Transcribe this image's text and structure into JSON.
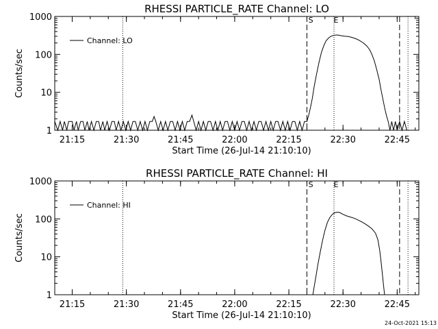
{
  "footer": {
    "timestamp": "24-Oct-2021 15:13"
  },
  "chart_data": [
    {
      "type": "line",
      "title": "RHESSI PARTICLE_RATE Channel: LO",
      "xlabel": "Start Time (26-Jul-14 21:10:10)",
      "ylabel": "Counts/sec",
      "yscale": "log",
      "xlim": [
        "21:10:10",
        "22:51:00"
      ],
      "ylim": [
        1,
        1000
      ],
      "x_ticks": [
        "21:15",
        "21:30",
        "21:45",
        "22:00",
        "22:15",
        "22:30",
        "22:45"
      ],
      "y_ticks": [
        "1",
        "10",
        "100",
        "1000"
      ],
      "legend": {
        "label": "Channel: LO",
        "position": "top-left"
      },
      "dotted_lines": [
        "21:29:00",
        "22:27:30",
        "22:48:00"
      ],
      "dashed_lines": [
        "22:20:00",
        "22:45:40"
      ],
      "markers": [
        {
          "label": "S",
          "x": "22:20:30"
        },
        {
          "label": "E",
          "x": "22:27:30"
        }
      ],
      "series": [
        {
          "name": "Channel: LO",
          "points": [
            [
              "21:10:10",
              1.7
            ],
            [
              "21:11:00",
              1.0
            ],
            [
              "21:11:40",
              1.7
            ],
            [
              "21:12:20",
              1.0
            ],
            [
              "21:12:50",
              1.7
            ],
            [
              "21:13:30",
              1.0
            ],
            [
              "21:14:00",
              1.7
            ],
            [
              "21:15:00",
              1.7
            ],
            [
              "21:15:30",
              1.0
            ],
            [
              "21:16:10",
              1.7
            ],
            [
              "21:16:40",
              1.0
            ],
            [
              "21:17:20",
              1.7
            ],
            [
              "21:18:00",
              1.7
            ],
            [
              "21:18:30",
              1.0
            ],
            [
              "21:19:10",
              1.7
            ],
            [
              "21:19:40",
              1.0
            ],
            [
              "21:20:20",
              1.7
            ],
            [
              "21:21:00",
              1.0
            ],
            [
              "21:21:40",
              1.7
            ],
            [
              "21:22:20",
              1.7
            ],
            [
              "21:22:50",
              1.0
            ],
            [
              "21:23:30",
              1.7
            ],
            [
              "21:24:00",
              1.0
            ],
            [
              "21:24:40",
              1.7
            ],
            [
              "21:25:20",
              1.0
            ],
            [
              "21:26:00",
              1.7
            ],
            [
              "21:26:40",
              1.7
            ],
            [
              "21:27:10",
              1.0
            ],
            [
              "21:27:50",
              1.7
            ],
            [
              "21:28:30",
              1.0
            ],
            [
              "21:29:10",
              1.7
            ],
            [
              "21:29:50",
              1.0
            ],
            [
              "21:30:30",
              1.7
            ],
            [
              "21:31:10",
              1.0
            ],
            [
              "21:31:50",
              1.7
            ],
            [
              "21:32:30",
              1.7
            ],
            [
              "21:33:10",
              1.0
            ],
            [
              "21:33:50",
              1.7
            ],
            [
              "21:34:30",
              1.0
            ],
            [
              "21:35:10",
              1.7
            ],
            [
              "21:35:50",
              1.0
            ],
            [
              "21:36:30",
              1.7
            ],
            [
              "21:37:10",
              1.7
            ],
            [
              "21:37:40",
              2.3
            ],
            [
              "21:38:10",
              1.7
            ],
            [
              "21:38:50",
              1.0
            ],
            [
              "21:39:30",
              1.7
            ],
            [
              "21:40:10",
              1.0
            ],
            [
              "21:40:50",
              1.7
            ],
            [
              "21:41:30",
              1.0
            ],
            [
              "21:42:10",
              1.7
            ],
            [
              "21:42:50",
              1.7
            ],
            [
              "21:43:30",
              1.0
            ],
            [
              "21:44:10",
              1.7
            ],
            [
              "21:44:50",
              1.0
            ],
            [
              "21:45:30",
              1.7
            ],
            [
              "21:46:10",
              1.0
            ],
            [
              "21:46:50",
              1.7
            ],
            [
              "21:47:30",
              1.7
            ],
            [
              "21:48:10",
              2.5
            ],
            [
              "21:48:40",
              1.7
            ],
            [
              "21:49:20",
              1.0
            ],
            [
              "21:50:00",
              1.7
            ],
            [
              "21:50:40",
              1.0
            ],
            [
              "21:51:20",
              1.7
            ],
            [
              "21:52:00",
              1.0
            ],
            [
              "21:52:40",
              1.7
            ],
            [
              "21:53:20",
              1.7
            ],
            [
              "21:54:00",
              1.0
            ],
            [
              "21:54:40",
              1.7
            ],
            [
              "21:55:20",
              1.0
            ],
            [
              "21:56:00",
              1.7
            ],
            [
              "21:56:40",
              1.0
            ],
            [
              "21:57:20",
              1.7
            ],
            [
              "21:58:00",
              1.7
            ],
            [
              "21:58:40",
              1.0
            ],
            [
              "21:59:20",
              1.7
            ],
            [
              "22:00:00",
              1.0
            ],
            [
              "22:00:40",
              1.7
            ],
            [
              "22:01:20",
              1.0
            ],
            [
              "22:02:00",
              1.7
            ],
            [
              "22:02:40",
              1.7
            ],
            [
              "22:03:20",
              1.0
            ],
            [
              "22:04:00",
              1.7
            ],
            [
              "22:04:40",
              1.0
            ],
            [
              "22:05:20",
              1.7
            ],
            [
              "22:06:00",
              1.0
            ],
            [
              "22:06:40",
              1.7
            ],
            [
              "22:07:20",
              1.7
            ],
            [
              "22:08:00",
              1.0
            ],
            [
              "22:08:40",
              1.7
            ],
            [
              "22:09:20",
              1.0
            ],
            [
              "22:10:00",
              1.7
            ],
            [
              "22:10:40",
              1.0
            ],
            [
              "22:11:20",
              1.7
            ],
            [
              "22:12:00",
              1.7
            ],
            [
              "22:12:40",
              1.0
            ],
            [
              "22:13:20",
              1.7
            ],
            [
              "22:14:00",
              1.0
            ],
            [
              "22:14:40",
              1.7
            ],
            [
              "22:15:20",
              1.0
            ],
            [
              "22:16:00",
              1.7
            ],
            [
              "22:16:40",
              1.7
            ],
            [
              "22:17:20",
              1.0
            ],
            [
              "22:18:00",
              1.7
            ],
            [
              "22:18:40",
              1.0
            ],
            [
              "22:19:20",
              1.7
            ],
            [
              "22:20:00",
              1.7
            ],
            [
              "22:20:30",
              2.5
            ],
            [
              "22:21:00",
              4
            ],
            [
              "22:21:30",
              7
            ],
            [
              "22:22:00",
              14
            ],
            [
              "22:22:40",
              30
            ],
            [
              "22:23:20",
              60
            ],
            [
              "22:24:00",
              110
            ],
            [
              "22:24:40",
              170
            ],
            [
              "22:25:20",
              230
            ],
            [
              "22:26:00",
              270
            ],
            [
              "22:26:40",
              300
            ],
            [
              "22:27:30",
              320
            ],
            [
              "22:28:30",
              325
            ],
            [
              "22:29:30",
              310
            ],
            [
              "22:30:30",
              300
            ],
            [
              "22:31:30",
              295
            ],
            [
              "22:32:30",
              280
            ],
            [
              "22:33:30",
              260
            ],
            [
              "22:34:30",
              235
            ],
            [
              "22:35:30",
              205
            ],
            [
              "22:36:30",
              170
            ],
            [
              "22:37:20",
              135
            ],
            [
              "22:38:00",
              100
            ],
            [
              "22:38:40",
              68
            ],
            [
              "22:39:20",
              40
            ],
            [
              "22:40:00",
              22
            ],
            [
              "22:40:30",
              12
            ],
            [
              "22:41:00",
              7
            ],
            [
              "22:41:30",
              4
            ],
            [
              "22:42:00",
              2.5
            ],
            [
              "22:42:30",
              1.7
            ],
            [
              "22:43:00",
              1.0
            ],
            [
              "22:43:30",
              1.7
            ],
            [
              "22:44:00",
              1.0
            ],
            [
              "22:44:30",
              1.7
            ],
            [
              "22:45:00",
              1.0
            ],
            [
              "22:45:40",
              1.7
            ],
            [
              "22:46:20",
              1.0
            ],
            [
              "22:47:00",
              1.7
            ],
            [
              "22:47:40",
              1.0
            ]
          ]
        }
      ]
    },
    {
      "type": "line",
      "title": "RHESSI PARTICLE_RATE Channel: HI",
      "xlabel": "Start Time (26-Jul-14 21:10:10)",
      "ylabel": "Counts/sec",
      "yscale": "log",
      "xlim": [
        "21:10:10",
        "22:51:00"
      ],
      "ylim": [
        1,
        1000
      ],
      "x_ticks": [
        "21:15",
        "21:30",
        "21:45",
        "22:00",
        "22:15",
        "22:30",
        "22:45"
      ],
      "y_ticks": [
        "1",
        "10",
        "100",
        "1000"
      ],
      "legend": {
        "label": "Channel: HI",
        "position": "top-left"
      },
      "dotted_lines": [
        "21:29:00",
        "22:27:30",
        "22:48:00"
      ],
      "dashed_lines": [
        "22:20:00",
        "22:45:40"
      ],
      "markers": [
        {
          "label": "S",
          "x": "22:20:30"
        },
        {
          "label": "E",
          "x": "22:27:30"
        }
      ],
      "series": [
        {
          "name": "Channel: HI",
          "points": [
            [
              "22:21:40",
              1.0
            ],
            [
              "22:22:00",
              1.6
            ],
            [
              "22:22:30",
              3
            ],
            [
              "22:23:00",
              6
            ],
            [
              "22:23:40",
              13
            ],
            [
              "22:24:20",
              27
            ],
            [
              "22:25:00",
              50
            ],
            [
              "22:25:40",
              80
            ],
            [
              "22:26:20",
              108
            ],
            [
              "22:27:00",
              130
            ],
            [
              "22:27:40",
              145
            ],
            [
              "22:28:20",
              150
            ],
            [
              "22:29:00",
              148
            ],
            [
              "22:30:00",
              132
            ],
            [
              "22:31:00",
              120
            ],
            [
              "22:32:00",
              112
            ],
            [
              "22:33:00",
              105
            ],
            [
              "22:34:00",
              95
            ],
            [
              "22:35:00",
              85
            ],
            [
              "22:36:00",
              75
            ],
            [
              "22:37:00",
              65
            ],
            [
              "22:38:00",
              55
            ],
            [
              "22:39:00",
              42
            ],
            [
              "22:39:40",
              28
            ],
            [
              "22:40:10",
              15
            ],
            [
              "22:40:30",
              8
            ],
            [
              "22:40:50",
              4
            ],
            [
              "22:41:10",
              2
            ],
            [
              "22:41:30",
              1.0
            ]
          ]
        }
      ]
    }
  ]
}
